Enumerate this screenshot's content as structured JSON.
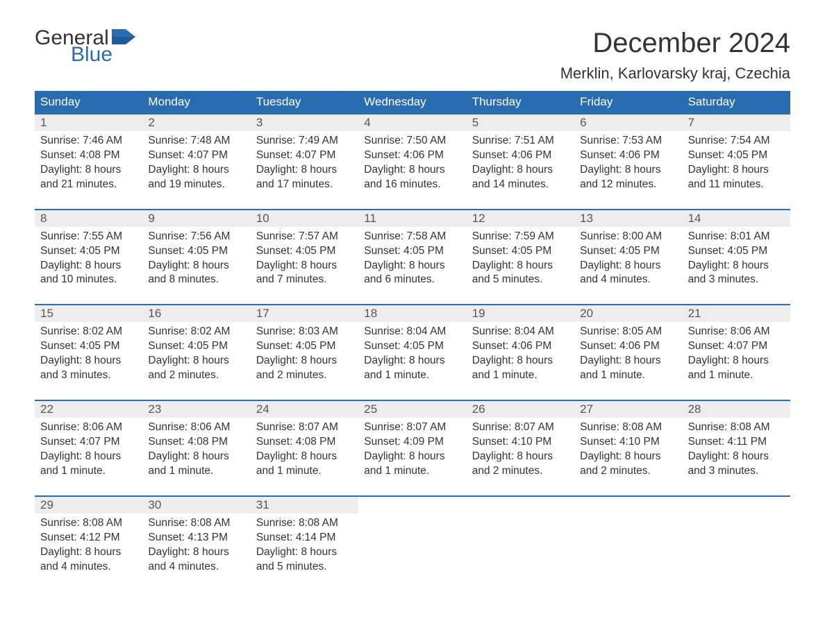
{
  "logo": {
    "word1": "General",
    "word2": "Blue",
    "text_color": "#333333",
    "accent_color": "#2a6cb0"
  },
  "title": "December 2024",
  "location": "Merklin, Karlovarsky kraj, Czechia",
  "colors": {
    "header_bg": "#2a6cb0",
    "header_text": "#ffffff",
    "daynum_bg": "#ededed",
    "daynum_text": "#555555",
    "body_text": "#333333",
    "week_border": "#2a6cb0",
    "page_bg": "#ffffff"
  },
  "typography": {
    "month_title_size": 40,
    "location_size": 22,
    "day_header_size": 17,
    "daynum_size": 17,
    "details_size": 15.5
  },
  "layout": {
    "columns": 7,
    "rows": 5
  },
  "day_headers": [
    "Sunday",
    "Monday",
    "Tuesday",
    "Wednesday",
    "Thursday",
    "Friday",
    "Saturday"
  ],
  "weeks": [
    [
      {
        "n": "1",
        "sr": "Sunrise: 7:46 AM",
        "ss": "Sunset: 4:08 PM",
        "d1": "Daylight: 8 hours",
        "d2": "and 21 minutes."
      },
      {
        "n": "2",
        "sr": "Sunrise: 7:48 AM",
        "ss": "Sunset: 4:07 PM",
        "d1": "Daylight: 8 hours",
        "d2": "and 19 minutes."
      },
      {
        "n": "3",
        "sr": "Sunrise: 7:49 AM",
        "ss": "Sunset: 4:07 PM",
        "d1": "Daylight: 8 hours",
        "d2": "and 17 minutes."
      },
      {
        "n": "4",
        "sr": "Sunrise: 7:50 AM",
        "ss": "Sunset: 4:06 PM",
        "d1": "Daylight: 8 hours",
        "d2": "and 16 minutes."
      },
      {
        "n": "5",
        "sr": "Sunrise: 7:51 AM",
        "ss": "Sunset: 4:06 PM",
        "d1": "Daylight: 8 hours",
        "d2": "and 14 minutes."
      },
      {
        "n": "6",
        "sr": "Sunrise: 7:53 AM",
        "ss": "Sunset: 4:06 PM",
        "d1": "Daylight: 8 hours",
        "d2": "and 12 minutes."
      },
      {
        "n": "7",
        "sr": "Sunrise: 7:54 AM",
        "ss": "Sunset: 4:05 PM",
        "d1": "Daylight: 8 hours",
        "d2": "and 11 minutes."
      }
    ],
    [
      {
        "n": "8",
        "sr": "Sunrise: 7:55 AM",
        "ss": "Sunset: 4:05 PM",
        "d1": "Daylight: 8 hours",
        "d2": "and 10 minutes."
      },
      {
        "n": "9",
        "sr": "Sunrise: 7:56 AM",
        "ss": "Sunset: 4:05 PM",
        "d1": "Daylight: 8 hours",
        "d2": "and 8 minutes."
      },
      {
        "n": "10",
        "sr": "Sunrise: 7:57 AM",
        "ss": "Sunset: 4:05 PM",
        "d1": "Daylight: 8 hours",
        "d2": "and 7 minutes."
      },
      {
        "n": "11",
        "sr": "Sunrise: 7:58 AM",
        "ss": "Sunset: 4:05 PM",
        "d1": "Daylight: 8 hours",
        "d2": "and 6 minutes."
      },
      {
        "n": "12",
        "sr": "Sunrise: 7:59 AM",
        "ss": "Sunset: 4:05 PM",
        "d1": "Daylight: 8 hours",
        "d2": "and 5 minutes."
      },
      {
        "n": "13",
        "sr": "Sunrise: 8:00 AM",
        "ss": "Sunset: 4:05 PM",
        "d1": "Daylight: 8 hours",
        "d2": "and 4 minutes."
      },
      {
        "n": "14",
        "sr": "Sunrise: 8:01 AM",
        "ss": "Sunset: 4:05 PM",
        "d1": "Daylight: 8 hours",
        "d2": "and 3 minutes."
      }
    ],
    [
      {
        "n": "15",
        "sr": "Sunrise: 8:02 AM",
        "ss": "Sunset: 4:05 PM",
        "d1": "Daylight: 8 hours",
        "d2": "and 3 minutes."
      },
      {
        "n": "16",
        "sr": "Sunrise: 8:02 AM",
        "ss": "Sunset: 4:05 PM",
        "d1": "Daylight: 8 hours",
        "d2": "and 2 minutes."
      },
      {
        "n": "17",
        "sr": "Sunrise: 8:03 AM",
        "ss": "Sunset: 4:05 PM",
        "d1": "Daylight: 8 hours",
        "d2": "and 2 minutes."
      },
      {
        "n": "18",
        "sr": "Sunrise: 8:04 AM",
        "ss": "Sunset: 4:05 PM",
        "d1": "Daylight: 8 hours",
        "d2": "and 1 minute."
      },
      {
        "n": "19",
        "sr": "Sunrise: 8:04 AM",
        "ss": "Sunset: 4:06 PM",
        "d1": "Daylight: 8 hours",
        "d2": "and 1 minute."
      },
      {
        "n": "20",
        "sr": "Sunrise: 8:05 AM",
        "ss": "Sunset: 4:06 PM",
        "d1": "Daylight: 8 hours",
        "d2": "and 1 minute."
      },
      {
        "n": "21",
        "sr": "Sunrise: 8:06 AM",
        "ss": "Sunset: 4:07 PM",
        "d1": "Daylight: 8 hours",
        "d2": "and 1 minute."
      }
    ],
    [
      {
        "n": "22",
        "sr": "Sunrise: 8:06 AM",
        "ss": "Sunset: 4:07 PM",
        "d1": "Daylight: 8 hours",
        "d2": "and 1 minute."
      },
      {
        "n": "23",
        "sr": "Sunrise: 8:06 AM",
        "ss": "Sunset: 4:08 PM",
        "d1": "Daylight: 8 hours",
        "d2": "and 1 minute."
      },
      {
        "n": "24",
        "sr": "Sunrise: 8:07 AM",
        "ss": "Sunset: 4:08 PM",
        "d1": "Daylight: 8 hours",
        "d2": "and 1 minute."
      },
      {
        "n": "25",
        "sr": "Sunrise: 8:07 AM",
        "ss": "Sunset: 4:09 PM",
        "d1": "Daylight: 8 hours",
        "d2": "and 1 minute."
      },
      {
        "n": "26",
        "sr": "Sunrise: 8:07 AM",
        "ss": "Sunset: 4:10 PM",
        "d1": "Daylight: 8 hours",
        "d2": "and 2 minutes."
      },
      {
        "n": "27",
        "sr": "Sunrise: 8:08 AM",
        "ss": "Sunset: 4:10 PM",
        "d1": "Daylight: 8 hours",
        "d2": "and 2 minutes."
      },
      {
        "n": "28",
        "sr": "Sunrise: 8:08 AM",
        "ss": "Sunset: 4:11 PM",
        "d1": "Daylight: 8 hours",
        "d2": "and 3 minutes."
      }
    ],
    [
      {
        "n": "29",
        "sr": "Sunrise: 8:08 AM",
        "ss": "Sunset: 4:12 PM",
        "d1": "Daylight: 8 hours",
        "d2": "and 4 minutes."
      },
      {
        "n": "30",
        "sr": "Sunrise: 8:08 AM",
        "ss": "Sunset: 4:13 PM",
        "d1": "Daylight: 8 hours",
        "d2": "and 4 minutes."
      },
      {
        "n": "31",
        "sr": "Sunrise: 8:08 AM",
        "ss": "Sunset: 4:14 PM",
        "d1": "Daylight: 8 hours",
        "d2": "and 5 minutes."
      },
      null,
      null,
      null,
      null
    ]
  ]
}
